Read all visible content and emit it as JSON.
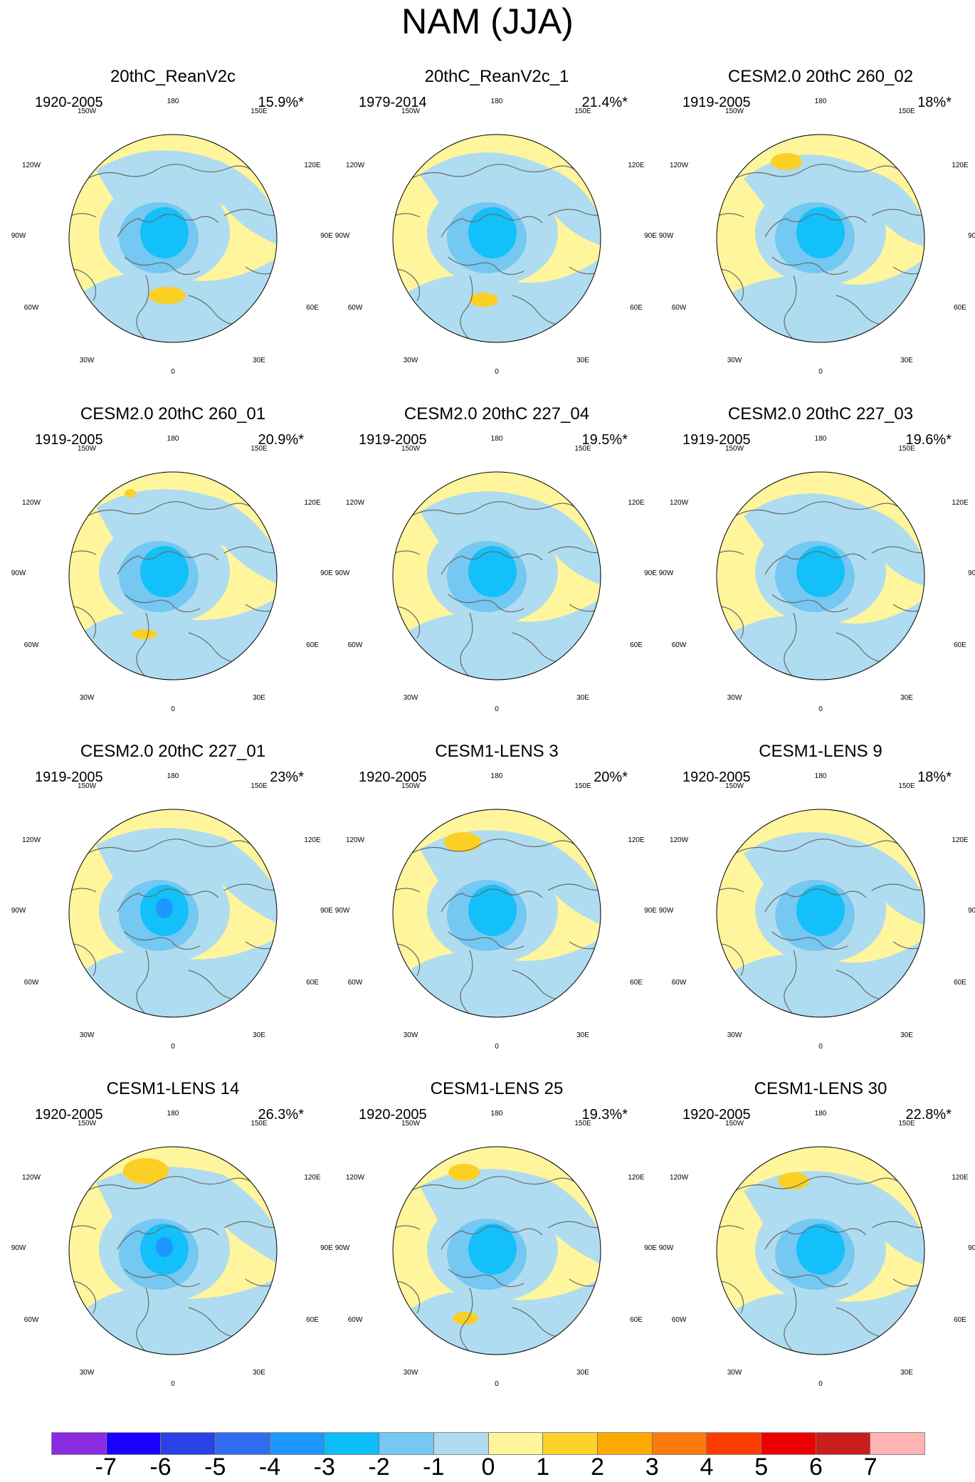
{
  "title": "NAM (JJA)",
  "colors": {
    "positive_fill": "#fff59c",
    "negative_fill": "#afdcf0",
    "moderate_negative": "#74c8f2",
    "strong_negative": "#13c0f9",
    "core_negative": "#1e96ff",
    "moderate_positive": "#fccf24",
    "coastline": "#6b6b6b",
    "border": "#000000"
  },
  "map_labels": {
    "lon_180": "180",
    "lon_150w": "150W",
    "lon_150e": "150E",
    "lon_120w": "120W",
    "lon_120e": "120E",
    "lon_90w": "90W",
    "lon_90e": "90E",
    "lon_60w": "60W",
    "lon_60e": "60E",
    "lon_30w": "30W",
    "lon_30e": "30E",
    "lon_0": "0"
  },
  "panels": [
    {
      "title": "20thC_ReanV2c",
      "period": "1920-2005",
      "variance": "15.9%*"
    },
    {
      "title": "20thC_ReanV2c_1",
      "period": "1979-2014",
      "variance": "21.4%*"
    },
    {
      "title": "CESM2.0 20thC 260_02",
      "period": "1919-2005",
      "variance": "18%*"
    },
    {
      "title": "CESM2.0 20thC 260_01",
      "period": "1919-2005",
      "variance": "20.9%*"
    },
    {
      "title": "CESM2.0 20thC 227_04",
      "period": "1919-2005",
      "variance": "19.5%*"
    },
    {
      "title": "CESM2.0 20thC 227_03",
      "period": "1919-2005",
      "variance": "19.6%*"
    },
    {
      "title": "CESM2.0 20thC 227_01",
      "period": "1919-2005",
      "variance": "23%*"
    },
    {
      "title": "CESM1-LENS 3",
      "period": "1920-2005",
      "variance": "20%*"
    },
    {
      "title": "CESM1-LENS 9",
      "period": "1920-2005",
      "variance": "18%*"
    },
    {
      "title": "CESM1-LENS 14",
      "period": "1920-2005",
      "variance": "26.3%*"
    },
    {
      "title": "CESM1-LENS 25",
      "period": "1920-2005",
      "variance": "19.3%*"
    },
    {
      "title": "CESM1-LENS 30",
      "period": "1920-2005",
      "variance": "22.8%*"
    }
  ],
  "legend": {
    "labels": [
      "-7",
      "-6",
      "-5",
      "-4",
      "-3",
      "-2",
      "-1",
      "0",
      "1",
      "2",
      "3",
      "4",
      "5",
      "6",
      "7"
    ],
    "colors": [
      "#8a2be2",
      "#1a00ff",
      "#2a41e6",
      "#2f6cf0",
      "#1e96ff",
      "#0cbdfa",
      "#74c8f2",
      "#afdcf0",
      "#fff59c",
      "#fdd32b",
      "#fdaa00",
      "#fd7a0c",
      "#fd3c00",
      "#ea0000",
      "#c81e1e",
      "#ffb4b4"
    ]
  }
}
